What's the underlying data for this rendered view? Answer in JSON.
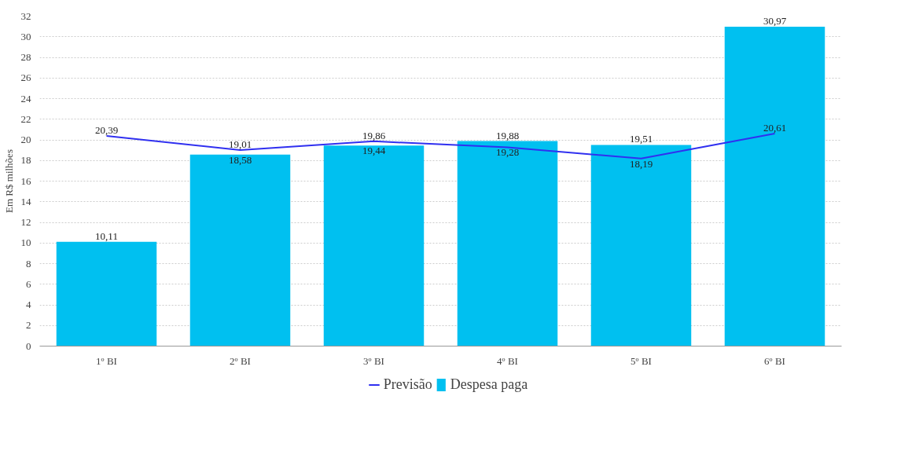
{
  "chart_data": {
    "type": "bar",
    "ylabel": "Em R$ milhões",
    "categories": [
      "1º BI",
      "2º BI",
      "3º BI",
      "4º BI",
      "5º BI",
      "6º BI"
    ],
    "series": [
      {
        "name": "Previsão",
        "type": "line",
        "color": "#3030f0",
        "values": [
          20.39,
          19.01,
          19.86,
          19.28,
          18.19,
          20.61
        ],
        "value_labels": [
          "20,39",
          "19,01",
          "19,86",
          "19,28",
          "18,19",
          "20,61"
        ]
      },
      {
        "name": "Despesa paga",
        "color": "#00c0f0",
        "values": [
          10.11,
          18.58,
          19.44,
          19.88,
          19.51,
          30.97
        ],
        "value_labels": [
          "10,11",
          "18,58",
          "19,44",
          "19,88",
          "19,51",
          "30,97"
        ]
      }
    ],
    "ylim": [
      0,
      32
    ],
    "yticks": [
      0,
      2,
      4,
      6,
      8,
      10,
      12,
      14,
      16,
      18,
      20,
      22,
      24,
      26,
      28,
      30,
      32
    ],
    "grid": "y",
    "legend": "bottom",
    "marker": "none",
    "line_style": "solid"
  }
}
